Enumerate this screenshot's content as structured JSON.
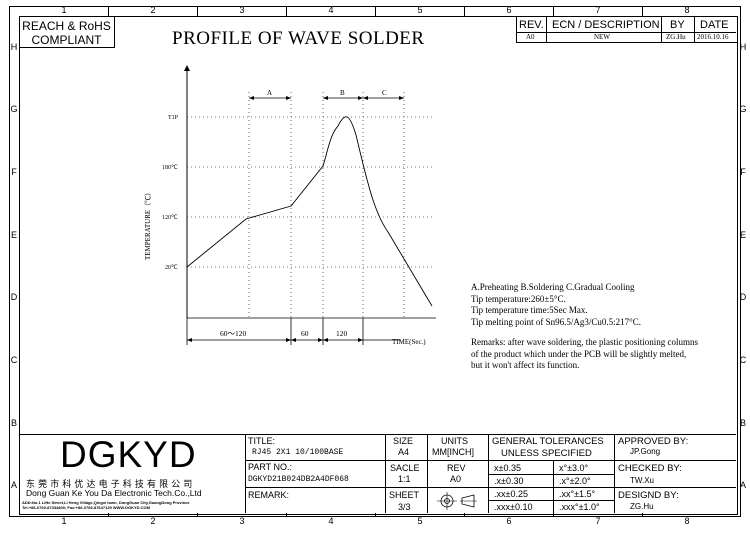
{
  "frame": {
    "columns": [
      "1",
      "2",
      "3",
      "4",
      "5",
      "6",
      "7",
      "8"
    ],
    "rows": [
      "H",
      "G",
      "F",
      "E",
      "D",
      "C",
      "B",
      "A"
    ]
  },
  "compliance": {
    "line1": "REACH & RoHS",
    "line2": "COMPLIANT"
  },
  "title": "PROFILE OF WAVE SOLDER",
  "revision": {
    "headers": {
      "rev": "REV.",
      "ecn": "ECN / DESCRIPTION",
      "by": "BY",
      "date": "DATE"
    },
    "row": {
      "rev": "A0",
      "ecn": "NEW",
      "by": "ZG.Hu",
      "date": "2016.10.16"
    }
  },
  "chart_data": {
    "type": "line",
    "ylabel": "TEMPERATURE（℃）",
    "xlabel": "TIME(Sec.)",
    "y_ticks": [
      "20℃",
      "120℃",
      "180℃",
      "T1P"
    ],
    "x_segments": [
      "60～120",
      "60",
      "120"
    ],
    "zones": [
      "A",
      "B",
      "C"
    ]
  },
  "notes": {
    "line1": "A.Preheating  B.Soldering  C.Gradual Cooling",
    "line2": "Tip temperature:260±5°C.",
    "line3": "Tip temperature time:5Sec Max.",
    "line4": "Tip melting point of Sn96.5/Ag3/Cu0.5:217°C.",
    "remark1": "Remarks: after wave soldering, the plastic positioning columns",
    "remark2": "of the product  which under the PCB will be slightly melted,",
    "remark3": "but it won't affect its function."
  },
  "company": {
    "logo": "DGKYD",
    "chinese_name": "东 莞 市 科 优 达 电 子 科 技 有 限 公 司",
    "english_name": "Dong Guan Ke You Da Electronic Tech.Co.,Ltd",
    "address": "ADD:No.1 LiHe Street,Li Heng Village,Qingxi town, DongGuan City,GuangDong Province",
    "contact": "Tel:+86-0769-87334800; Fax:+86-0769-87647129  WWW.DGKYD.COM"
  },
  "titleblock": {
    "title_label": "TITLE:",
    "title_value": "RJ45 2X1 10/100BASE",
    "partno_label": "PART NO.:",
    "partno_value": "DGKYD21B024DB2A4DF068",
    "remark_label": "REMARK:",
    "size_label": "SIZE",
    "size_value": "A4",
    "units_label": "UNITS",
    "units_value": "MM[INCH]",
    "scale_label": "SACLE",
    "scale_value": "1:1",
    "rev_label": "REV",
    "rev_value": "A0",
    "sheet_label": "SHEET",
    "sheet_value": "3/3",
    "tol_title1": "GENERAL TOLERANCES",
    "tol_title2": "UNLESS SPECIFIED",
    "tol": [
      "x±0.35",
      "x°±3.0°",
      ".x±0.30",
      ".x°±2.0°",
      ".xx±0.25",
      ".xx°±1.5°",
      ".xxx±0.10",
      ".xxx°±1.0°"
    ],
    "approved_label": "APPROVED BY:",
    "approved_value": "JP.Gong",
    "checked_label": "CHECKED BY:",
    "checked_value": "TW.Xu",
    "designed_label": "DESIGND BY:",
    "designed_value": "ZG.Hu"
  }
}
